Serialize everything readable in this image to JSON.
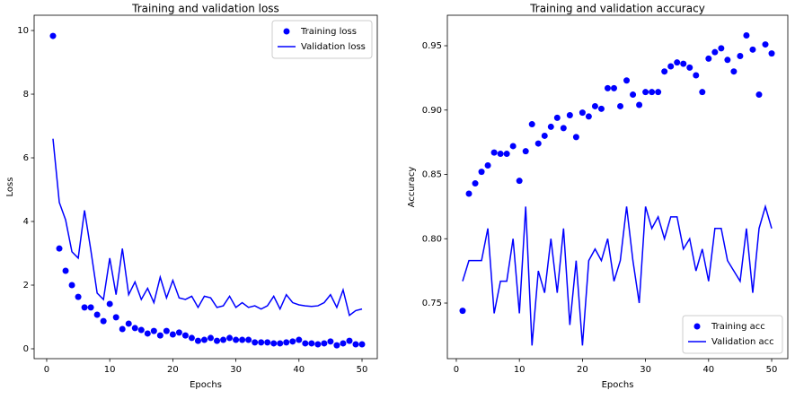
{
  "chart_data": [
    {
      "type": "line",
      "title": "Training and validation loss",
      "xlabel": "Epochs",
      "ylabel": "Loss",
      "x": [
        1,
        2,
        3,
        4,
        5,
        6,
        7,
        8,
        9,
        10,
        11,
        12,
        13,
        14,
        15,
        16,
        17,
        18,
        19,
        20,
        21,
        22,
        23,
        24,
        25,
        26,
        27,
        28,
        29,
        30,
        31,
        32,
        33,
        34,
        35,
        36,
        37,
        38,
        39,
        40,
        41,
        42,
        43,
        44,
        45,
        46,
        47,
        48,
        49,
        50
      ],
      "series": [
        {
          "name": "Training loss",
          "color": "#0000ff",
          "mode": "markers",
          "values": [
            9.83,
            3.15,
            2.45,
            2.0,
            1.63,
            1.3,
            1.3,
            1.07,
            0.87,
            1.41,
            0.99,
            0.62,
            0.79,
            0.65,
            0.59,
            0.48,
            0.56,
            0.42,
            0.56,
            0.45,
            0.51,
            0.42,
            0.34,
            0.25,
            0.28,
            0.34,
            0.25,
            0.28,
            0.34,
            0.28,
            0.28,
            0.28,
            0.2,
            0.2,
            0.2,
            0.17,
            0.17,
            0.2,
            0.23,
            0.28,
            0.17,
            0.17,
            0.14,
            0.17,
            0.23,
            0.11,
            0.17,
            0.25,
            0.14,
            0.14
          ]
        },
        {
          "name": "Validation loss",
          "color": "#0000ff",
          "mode": "line",
          "values": [
            6.6,
            4.6,
            4.05,
            3.05,
            2.85,
            4.35,
            3.1,
            1.75,
            1.55,
            2.85,
            1.7,
            3.15,
            1.7,
            2.1,
            1.55,
            1.9,
            1.45,
            2.25,
            1.6,
            2.15,
            1.6,
            1.55,
            1.65,
            1.3,
            1.65,
            1.6,
            1.3,
            1.35,
            1.65,
            1.3,
            1.45,
            1.3,
            1.35,
            1.25,
            1.35,
            1.65,
            1.25,
            1.7,
            1.45,
            1.38,
            1.35,
            1.33,
            1.35,
            1.45,
            1.7,
            1.3,
            1.85,
            1.05,
            1.2,
            1.25
          ]
        }
      ],
      "xlim": [
        -1.99,
        52.42
      ],
      "xticks": [
        0,
        10,
        20,
        30,
        40,
        50
      ],
      "ylim": [
        -0.31,
        10.48
      ],
      "yticks": [
        0,
        2,
        4,
        6,
        8,
        10
      ],
      "legend": "upper right"
    },
    {
      "type": "line",
      "title": "Training and validation accuracy",
      "xlabel": "Epochs",
      "ylabel": "Accuracy",
      "x": [
        1,
        2,
        3,
        4,
        5,
        6,
        7,
        8,
        9,
        10,
        11,
        12,
        13,
        14,
        15,
        16,
        17,
        18,
        19,
        20,
        21,
        22,
        23,
        24,
        25,
        26,
        27,
        28,
        29,
        30,
        31,
        32,
        33,
        34,
        35,
        36,
        37,
        38,
        39,
        40,
        41,
        42,
        43,
        44,
        45,
        46,
        47,
        48,
        49,
        50
      ],
      "series": [
        {
          "name": "Training acc",
          "color": "#0000ff",
          "mode": "markers",
          "values": [
            0.744,
            0.835,
            0.843,
            0.852,
            0.857,
            0.867,
            0.866,
            0.866,
            0.872,
            0.845,
            0.868,
            0.889,
            0.874,
            0.88,
            0.887,
            0.894,
            0.886,
            0.896,
            0.879,
            0.898,
            0.895,
            0.903,
            0.901,
            0.917,
            0.917,
            0.903,
            0.923,
            0.912,
            0.904,
            0.914,
            0.914,
            0.914,
            0.93,
            0.934,
            0.937,
            0.936,
            0.933,
            0.927,
            0.914,
            0.94,
            0.945,
            0.948,
            0.939,
            0.93,
            0.942,
            0.958,
            0.947,
            0.912,
            0.951,
            0.944
          ]
        },
        {
          "name": "Validation acc",
          "color": "#0000ff",
          "mode": "line",
          "values": [
            0.767,
            0.783,
            0.783,
            0.783,
            0.808,
            0.742,
            0.767,
            0.767,
            0.8,
            0.742,
            0.825,
            0.717,
            0.775,
            0.758,
            0.8,
            0.758,
            0.808,
            0.733,
            0.783,
            0.717,
            0.783,
            0.792,
            0.783,
            0.8,
            0.767,
            0.783,
            0.825,
            0.783,
            0.75,
            0.825,
            0.808,
            0.817,
            0.8,
            0.817,
            0.817,
            0.792,
            0.8,
            0.775,
            0.792,
            0.767,
            0.808,
            0.808,
            0.783,
            0.775,
            0.767,
            0.808,
            0.758,
            0.808,
            0.825,
            0.808
          ]
        }
      ],
      "xlim": [
        -1.42,
        52.56
      ],
      "xticks": [
        0,
        10,
        20,
        30,
        40,
        50
      ],
      "ylim": [
        0.7068,
        0.9737
      ],
      "yticks": [
        0.75,
        {
          "value": 0.8,
          "label": "0.80"
        },
        0.85,
        {
          "value": 0.9,
          "label": "0.90"
        },
        0.95
      ],
      "legend": "lower right"
    }
  ]
}
